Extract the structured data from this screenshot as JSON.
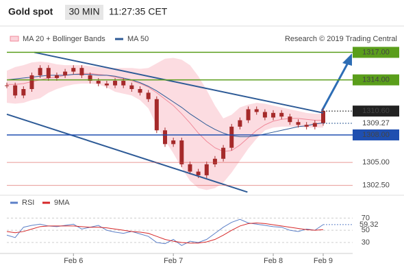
{
  "chart_data": {
    "type": "candlestick",
    "title": "Gold spot",
    "timeframe": "30 MIN",
    "time": "11:27:35 CET",
    "note": "Research © 2019 Trading Central",
    "candle_color": "#a52a2a",
    "categories": [
      null,
      null,
      null,
      null,
      null,
      null,
      null,
      null,
      "Feb 6",
      null,
      null,
      null,
      null,
      null,
      null,
      null,
      null,
      null,
      null,
      null,
      "Feb 7",
      null,
      null,
      null,
      null,
      null,
      null,
      null,
      null,
      null,
      null,
      null,
      "Feb 8",
      null,
      null,
      null,
      null,
      null,
      "Feb 9"
    ],
    "close": [
      1313.4,
      1312.3,
      1313.0,
      1314.5,
      1315.3,
      1314.2,
      1314.5,
      1314.9,
      1315.3,
      1314.5,
      1313.9,
      1313.6,
      1313.4,
      1313.9,
      1313.4,
      1313.0,
      1312.6,
      1311.9,
      1308.5,
      1307.0,
      1307.4,
      1304.8,
      1304.0,
      1303.6,
      1304.8,
      1305.4,
      1306.6,
      1308.9,
      1309.6,
      1310.8,
      1310.5,
      1309.9,
      1310.4,
      1310.0,
      1309.4,
      1309.1,
      1308.9,
      1309.3,
      1310.6
    ],
    "series": [
      {
        "name": "MA 20 + Bollinger Bands",
        "color": "#f08a9a",
        "band_color": "#fbd3da",
        "values": [
          1313.5,
          1313.5,
          1313.6,
          1313.8,
          1314.0,
          1314.2,
          1314.3,
          1314.5,
          1314.6,
          1314.7,
          1314.7,
          1314.6,
          1314.5,
          1314.3,
          1314.1,
          1313.9,
          1313.6,
          1313.2,
          1312.6,
          1311.9,
          1311.2,
          1310.3,
          1309.3,
          1308.2,
          1307.3,
          1306.6,
          1306.2,
          1306.3,
          1306.9,
          1307.7,
          1308.5,
          1309.1,
          1309.5,
          1309.7,
          1309.8,
          1309.8,
          1309.7,
          1309.6,
          1309.6
        ],
        "upper": [
          1315.0,
          1315.4,
          1315.6,
          1315.9,
          1316.0,
          1315.9,
          1315.7,
          1315.6,
          1315.6,
          1315.6,
          1315.5,
          1315.4,
          1315.3,
          1315.3,
          1315.3,
          1315.3,
          1315.2,
          1315.3,
          1315.8,
          1316.3,
          1316.4,
          1316.2,
          1315.6,
          1314.4,
          1312.9,
          1311.2,
          1309.8,
          1310.2,
          1311.0,
          1311.3,
          1311.5,
          1311.4,
          1311.2,
          1311.0,
          1310.8,
          1310.6,
          1310.4,
          1310.3,
          1310.3
        ],
        "lower": [
          1311.5,
          1311.4,
          1311.5,
          1311.8,
          1312.0,
          1312.6,
          1313.0,
          1313.3,
          1313.5,
          1313.6,
          1313.6,
          1313.5,
          1313.2,
          1312.7,
          1312.5,
          1312.3,
          1311.8,
          1310.9,
          1309.0,
          1307.4,
          1306.0,
          1304.4,
          1303.0,
          1302.2,
          1302.0,
          1302.2,
          1302.8,
          1303.9,
          1305.2,
          1306.5,
          1307.6,
          1308.5,
          1308.8,
          1308.9,
          1308.9,
          1308.9,
          1308.8,
          1308.8,
          1308.8
        ]
      },
      {
        "name": "MA 50",
        "color": "#2d5a96",
        "values": [
          1314.0,
          1314.1,
          1314.2,
          1314.3,
          1314.4,
          1314.5,
          1314.5,
          1314.5,
          1314.6,
          1314.6,
          1314.6,
          1314.5,
          1314.5,
          1314.4,
          1314.2,
          1314.0,
          1313.7,
          1313.3,
          1312.8,
          1312.2,
          1311.6,
          1311.0,
          1310.3,
          1309.7,
          1309.1,
          1308.6,
          1308.2,
          1307.9,
          1307.8,
          1307.8,
          1307.9,
          1308.1,
          1308.3,
          1308.5,
          1308.7,
          1308.9,
          1309.0,
          1309.2,
          1309.3
        ]
      }
    ],
    "ylim": [
      1301.8,
      1318.6
    ],
    "trendlines": [
      {
        "from": [
          3.3,
          1317.0
        ],
        "to": [
          38,
          1310.4
        ],
        "color": "#2d5a96"
      },
      {
        "from": [
          0,
          1310.25
        ],
        "to": [
          28.9,
          1301.77
        ],
        "color": "#2d5a96"
      }
    ],
    "levels": [
      {
        "value": 1317,
        "label": "1317.00",
        "color": "#5a9e1b",
        "style": "box"
      },
      {
        "value": 1314,
        "label": "1314.00",
        "color": "#5a9e1b",
        "style": "box"
      },
      {
        "value": 1310.6,
        "label": "1310.60",
        "color": "#222222",
        "style": "current"
      },
      {
        "value": 1309.27,
        "color": "#2d5a96",
        "style": "dotted"
      },
      {
        "value": 1308,
        "label": "1308.00",
        "color": "#1f4fb0",
        "style": "box"
      },
      {
        "value": 1305,
        "label": "1305.00",
        "color": "#d9534f",
        "style": "plain"
      },
      {
        "value": 1302.5,
        "label": "1302.50",
        "color": "#d9534f",
        "style": "plain"
      }
    ],
    "indicator": {
      "ylim": [
        12,
        85
      ],
      "yticks": [
        70,
        50,
        30
      ],
      "current": 59.32,
      "series": [
        {
          "name": "RSI",
          "color": "#5b7fc7",
          "values": [
            42,
            38,
            55,
            58,
            60,
            57,
            56,
            58,
            60,
            52,
            55,
            58,
            50,
            47,
            45,
            48,
            44,
            40,
            30,
            28,
            35,
            25,
            32,
            30,
            35,
            45,
            55,
            63,
            68,
            62,
            60,
            58,
            56,
            55,
            50,
            48,
            52,
            50,
            59.32
          ]
        },
        {
          "name": "9MA",
          "color": "#d62728",
          "values": [
            48,
            46,
            48,
            52,
            56,
            57,
            57,
            57,
            57,
            56,
            55,
            55,
            54,
            52,
            50,
            48,
            47,
            45,
            40,
            35,
            32,
            30,
            29,
            29,
            31,
            35,
            42,
            50,
            57,
            61,
            62,
            61,
            59,
            57,
            55,
            53,
            51,
            50,
            51
          ]
        }
      ]
    }
  }
}
